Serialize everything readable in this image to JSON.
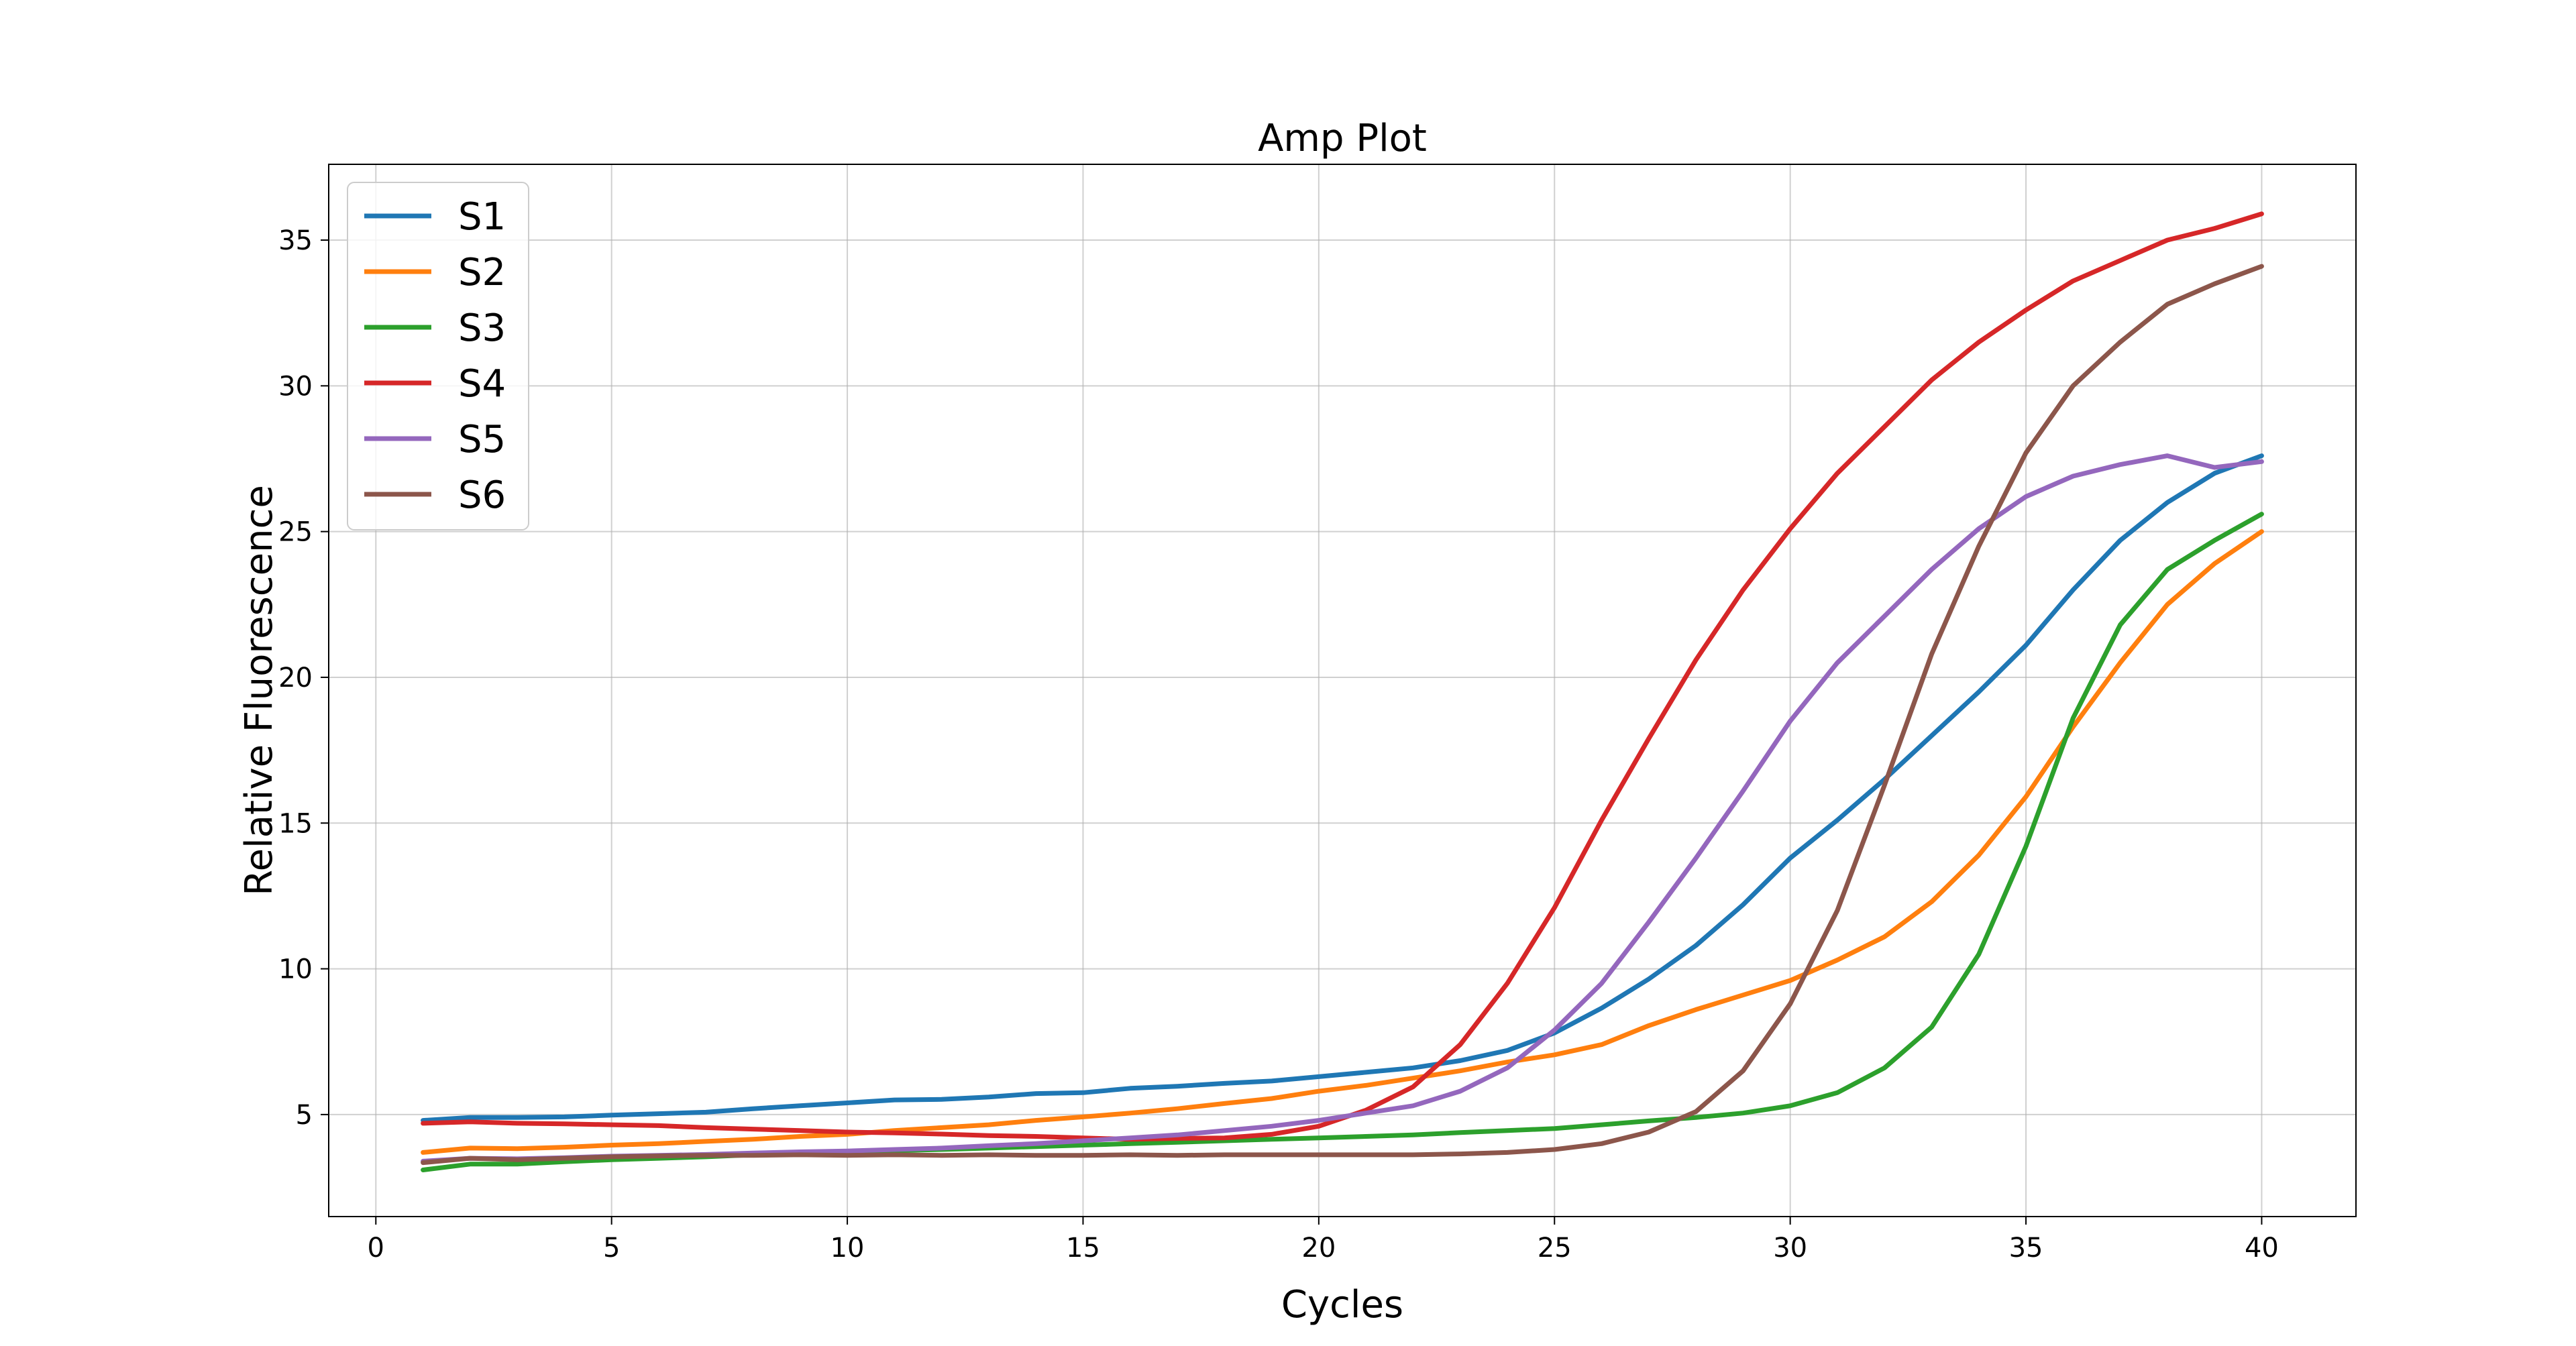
{
  "chart_data": {
    "type": "line",
    "title": "Amp Plot",
    "xlabel": "Cycles",
    "ylabel": "Relative Fluorescence",
    "xlim": [
      -1,
      42
    ],
    "ylim": [
      1.5,
      37.6
    ],
    "xticks": [
      0,
      5,
      10,
      15,
      20,
      25,
      30,
      35,
      40
    ],
    "yticks": [
      5,
      10,
      15,
      20,
      25,
      30,
      35
    ],
    "grid": true,
    "legend_position": "top-left",
    "x": [
      1,
      2,
      3,
      4,
      5,
      6,
      7,
      8,
      9,
      10,
      11,
      12,
      13,
      14,
      15,
      16,
      17,
      18,
      19,
      20,
      21,
      22,
      23,
      24,
      25,
      26,
      27,
      28,
      29,
      30,
      31,
      32,
      33,
      34,
      35,
      36,
      37,
      38,
      39,
      40
    ],
    "series": [
      {
        "name": "S1",
        "color": "#1f77b4",
        "values": [
          4.8,
          4.9,
          4.9,
          4.92,
          4.98,
          5.03,
          5.08,
          5.2,
          5.3,
          5.4,
          5.5,
          5.52,
          5.6,
          5.72,
          5.75,
          5.9,
          5.97,
          6.07,
          6.15,
          6.3,
          6.45,
          6.6,
          6.85,
          7.2,
          7.8,
          8.65,
          9.65,
          10.8,
          12.2,
          13.8,
          15.1,
          16.5,
          18.0,
          19.5,
          21.1,
          23.0,
          24.7,
          26.0,
          27.0,
          27.6
        ]
      },
      {
        "name": "S2",
        "color": "#ff7f0e",
        "values": [
          3.7,
          3.85,
          3.83,
          3.88,
          3.95,
          4.0,
          4.08,
          4.15,
          4.25,
          4.32,
          4.45,
          4.55,
          4.65,
          4.8,
          4.92,
          5.05,
          5.2,
          5.38,
          5.55,
          5.8,
          6.0,
          6.25,
          6.5,
          6.8,
          7.05,
          7.4,
          8.05,
          8.6,
          9.1,
          9.6,
          10.3,
          11.1,
          12.3,
          13.9,
          15.9,
          18.3,
          20.5,
          22.5,
          23.9,
          25.0
        ]
      },
      {
        "name": "S3",
        "color": "#2ca02c",
        "values": [
          3.1,
          3.3,
          3.3,
          3.38,
          3.45,
          3.5,
          3.55,
          3.62,
          3.67,
          3.72,
          3.76,
          3.8,
          3.85,
          3.9,
          3.95,
          4.0,
          4.05,
          4.1,
          4.15,
          4.2,
          4.25,
          4.3,
          4.38,
          4.45,
          4.52,
          4.65,
          4.78,
          4.9,
          5.05,
          5.3,
          5.75,
          6.6,
          8.0,
          10.5,
          14.2,
          18.6,
          21.8,
          23.7,
          24.7,
          25.6
        ]
      },
      {
        "name": "S4",
        "color": "#d62728",
        "values": [
          4.7,
          4.75,
          4.7,
          4.68,
          4.65,
          4.62,
          4.55,
          4.5,
          4.45,
          4.4,
          4.37,
          4.33,
          4.28,
          4.25,
          4.2,
          4.15,
          4.18,
          4.2,
          4.32,
          4.6,
          5.15,
          5.95,
          7.4,
          9.5,
          12.1,
          15.1,
          17.9,
          20.6,
          23.0,
          25.1,
          27.0,
          28.6,
          30.2,
          31.5,
          32.6,
          33.6,
          34.3,
          35.0,
          35.4,
          35.9
        ]
      },
      {
        "name": "S5",
        "color": "#9467bd",
        "values": [
          3.4,
          3.5,
          3.48,
          3.52,
          3.57,
          3.6,
          3.63,
          3.68,
          3.72,
          3.75,
          3.8,
          3.85,
          3.93,
          4.0,
          4.1,
          4.2,
          4.3,
          4.45,
          4.6,
          4.8,
          5.05,
          5.3,
          5.8,
          6.6,
          7.9,
          9.5,
          11.6,
          13.8,
          16.1,
          18.5,
          20.5,
          22.1,
          23.7,
          25.1,
          26.2,
          26.9,
          27.3,
          27.6,
          27.2,
          27.4
        ]
      },
      {
        "name": "S6",
        "color": "#8c564b",
        "values": [
          3.35,
          3.5,
          3.45,
          3.5,
          3.55,
          3.58,
          3.6,
          3.6,
          3.62,
          3.6,
          3.62,
          3.6,
          3.62,
          3.6,
          3.6,
          3.62,
          3.6,
          3.62,
          3.62,
          3.62,
          3.62,
          3.62,
          3.65,
          3.7,
          3.8,
          4.0,
          4.4,
          5.1,
          6.5,
          8.8,
          12.0,
          16.3,
          20.8,
          24.5,
          27.7,
          30.0,
          31.5,
          32.8,
          33.5,
          34.1
        ]
      }
    ]
  }
}
